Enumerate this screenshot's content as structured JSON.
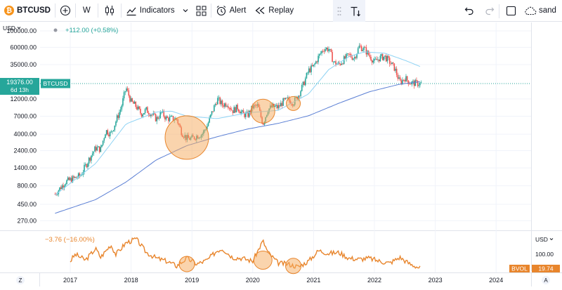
{
  "toolbar": {
    "symbol": "BTCUSD",
    "interval": "W",
    "indicators_label": "Indicators",
    "alert_label": "Alert",
    "replay_label": "Replay",
    "layout_name": "sand"
  },
  "price_pane": {
    "currency_label": "USD",
    "change_text": "+112.00 (+0.58%)",
    "last_price": "19376.00",
    "countdown": "6d 13h",
    "symbol_tag": "BTCUSD",
    "scale_labels": [
      "100000.00",
      "60000.00",
      "35000.00",
      "12000.00",
      "7000.00",
      "4000.00",
      "2400.00",
      "1400.00",
      "800.00",
      "450.00",
      "270.00"
    ]
  },
  "volume_pane": {
    "currency_label": "USD",
    "change_text": "−3.76 (−16.00%)",
    "scale_label": "100.00",
    "tag_name": "BVOL",
    "tag_value": "19.74"
  },
  "time_axis": {
    "labels": [
      "2017",
      "2018",
      "2019",
      "2020",
      "2021",
      "2022",
      "2023",
      "2024"
    ],
    "left_button": "Z",
    "right_button": "A"
  },
  "colors": {
    "up": "#26a69a",
    "down": "#ef5350",
    "ma_fast": "#8fd3f4",
    "ma_slow": "#5b7fd4",
    "volatility": "#e8852c",
    "highlight_fill": "#f5a95c",
    "price_tag": "#26a69a"
  },
  "chart_data": {
    "type": "candlestick",
    "scale": "log",
    "ylim": [
      200,
      130000
    ],
    "x_range": [
      "2016-10",
      "2024-06"
    ],
    "interval": "weekly",
    "anchors": [
      [
        "2016-10",
        620
      ],
      [
        "2016-12",
        900
      ],
      [
        "2017-03",
        1100
      ],
      [
        "2017-05",
        2000
      ],
      [
        "2017-06",
        2600
      ],
      [
        "2017-07",
        2500
      ],
      [
        "2017-08",
        4500
      ],
      [
        "2017-09",
        4000
      ],
      [
        "2017-10",
        6000
      ],
      [
        "2017-11",
        9000
      ],
      [
        "2017-12",
        17000
      ],
      [
        "2018-01",
        11000
      ],
      [
        "2018-02",
        9500
      ],
      [
        "2018-03",
        7500
      ],
      [
        "2018-04",
        8500
      ],
      [
        "2018-05",
        7500
      ],
      [
        "2018-06",
        6400
      ],
      [
        "2018-07",
        7800
      ],
      [
        "2018-08",
        6500
      ],
      [
        "2018-09",
        6500
      ],
      [
        "2018-10",
        6400
      ],
      [
        "2018-11",
        4200
      ],
      [
        "2018-12",
        3500
      ],
      [
        "2019-01",
        3500
      ],
      [
        "2019-02",
        3800
      ],
      [
        "2019-03",
        4000
      ],
      [
        "2019-04",
        5200
      ],
      [
        "2019-05",
        8000
      ],
      [
        "2019-06",
        12000
      ],
      [
        "2019-07",
        10000
      ],
      [
        "2019-08",
        10500
      ],
      [
        "2019-09",
        8300
      ],
      [
        "2019-10",
        9200
      ],
      [
        "2019-11",
        7500
      ],
      [
        "2019-12",
        7200
      ],
      [
        "2020-01",
        9300
      ],
      [
        "2020-02",
        9700
      ],
      [
        "2020-03",
        5500
      ],
      [
        "2020-04",
        8700
      ],
      [
        "2020-05",
        9500
      ],
      [
        "2020-06",
        9200
      ],
      [
        "2020-07",
        11000
      ],
      [
        "2020-08",
        11700
      ],
      [
        "2020-09",
        10700
      ],
      [
        "2020-10",
        13500
      ],
      [
        "2020-11",
        19000
      ],
      [
        "2020-12",
        29000
      ],
      [
        "2021-01",
        33000
      ],
      [
        "2021-02",
        45000
      ],
      [
        "2021-03",
        58000
      ],
      [
        "2021-04",
        57000
      ],
      [
        "2021-05",
        37000
      ],
      [
        "2021-06",
        35000
      ],
      [
        "2021-07",
        41000
      ],
      [
        "2021-08",
        47000
      ],
      [
        "2021-09",
        43000
      ],
      [
        "2021-10",
        61000
      ],
      [
        "2021-11",
        57000
      ],
      [
        "2021-12",
        46000
      ],
      [
        "2022-01",
        38000
      ],
      [
        "2022-02",
        43000
      ],
      [
        "2022-03",
        45000
      ],
      [
        "2022-04",
        38000
      ],
      [
        "2022-05",
        31000
      ],
      [
        "2022-06",
        20000
      ],
      [
        "2022-07",
        23000
      ],
      [
        "2022-08",
        20000
      ],
      [
        "2022-09",
        19500
      ],
      [
        "2022-10",
        19376
      ]
    ],
    "ma_fast": [
      [
        "2016-10",
        600
      ],
      [
        "2017-06",
        1600
      ],
      [
        "2017-12",
        5500
      ],
      [
        "2018-06",
        8000
      ],
      [
        "2018-09",
        8200
      ],
      [
        "2018-12",
        7000
      ],
      [
        "2019-06",
        6500
      ],
      [
        "2019-12",
        7800
      ],
      [
        "2020-06",
        8400
      ],
      [
        "2020-12",
        14000
      ],
      [
        "2021-04",
        30000
      ],
      [
        "2021-08",
        45000
      ],
      [
        "2021-11",
        52000
      ],
      [
        "2022-03",
        50000
      ],
      [
        "2022-07",
        40000
      ],
      [
        "2022-10",
        33000
      ]
    ],
    "ma_slow": [
      [
        "2016-10",
        340
      ],
      [
        "2017-06",
        520
      ],
      [
        "2017-12",
        900
      ],
      [
        "2018-06",
        1800
      ],
      [
        "2018-12",
        2800
      ],
      [
        "2019-06",
        3700
      ],
      [
        "2019-12",
        4700
      ],
      [
        "2020-06",
        5600
      ],
      [
        "2020-12",
        7100
      ],
      [
        "2021-06",
        10500
      ],
      [
        "2021-12",
        15000
      ],
      [
        "2022-06",
        19000
      ],
      [
        "2022-10",
        20500
      ]
    ],
    "highlights": [
      {
        "date": "2018-12",
        "value": 3600,
        "r": 31
      },
      {
        "date": "2020-03",
        "value": 8200,
        "r": 17
      },
      {
        "date": "2020-09",
        "value": 10400,
        "r": 10
      }
    ],
    "last_price": 19376,
    "volatility": {
      "ylim": [
        0,
        200
      ],
      "anchors": [
        [
          "2017-01",
          55
        ],
        [
          "2017-02",
          90
        ],
        [
          "2017-04",
          60
        ],
        [
          "2017-06",
          120
        ],
        [
          "2017-07",
          75
        ],
        [
          "2017-09",
          140
        ],
        [
          "2017-10",
          90
        ],
        [
          "2017-12",
          150
        ],
        [
          "2018-02",
          170
        ],
        [
          "2018-04",
          100
        ],
        [
          "2018-06",
          70
        ],
        [
          "2018-08",
          55
        ],
        [
          "2018-10",
          30
        ],
        [
          "2018-12",
          70
        ],
        [
          "2019-02",
          40
        ],
        [
          "2019-04",
          60
        ],
        [
          "2019-06",
          110
        ],
        [
          "2019-07",
          120
        ],
        [
          "2019-09",
          75
        ],
        [
          "2019-11",
          70
        ],
        [
          "2020-01",
          55
        ],
        [
          "2020-03",
          160
        ],
        [
          "2020-04",
          100
        ],
        [
          "2020-06",
          45
        ],
        [
          "2020-08",
          40
        ],
        [
          "2020-10",
          25
        ],
        [
          "2020-12",
          55
        ],
        [
          "2021-02",
          110
        ],
        [
          "2021-04",
          95
        ],
        [
          "2021-06",
          100
        ],
        [
          "2021-08",
          70
        ],
        [
          "2021-10",
          65
        ],
        [
          "2021-12",
          70
        ],
        [
          "2022-02",
          55
        ],
        [
          "2022-04",
          45
        ],
        [
          "2022-06",
          75
        ],
        [
          "2022-08",
          40
        ],
        [
          "2022-10",
          20
        ]
      ],
      "highlights": [
        {
          "date": "2018-12",
          "value": 40,
          "r": 11
        },
        {
          "date": "2020-03",
          "value": 60,
          "r": 13
        },
        {
          "date": "2020-09",
          "value": 30,
          "r": 11
        }
      ],
      "last_value": 19.74
    }
  }
}
